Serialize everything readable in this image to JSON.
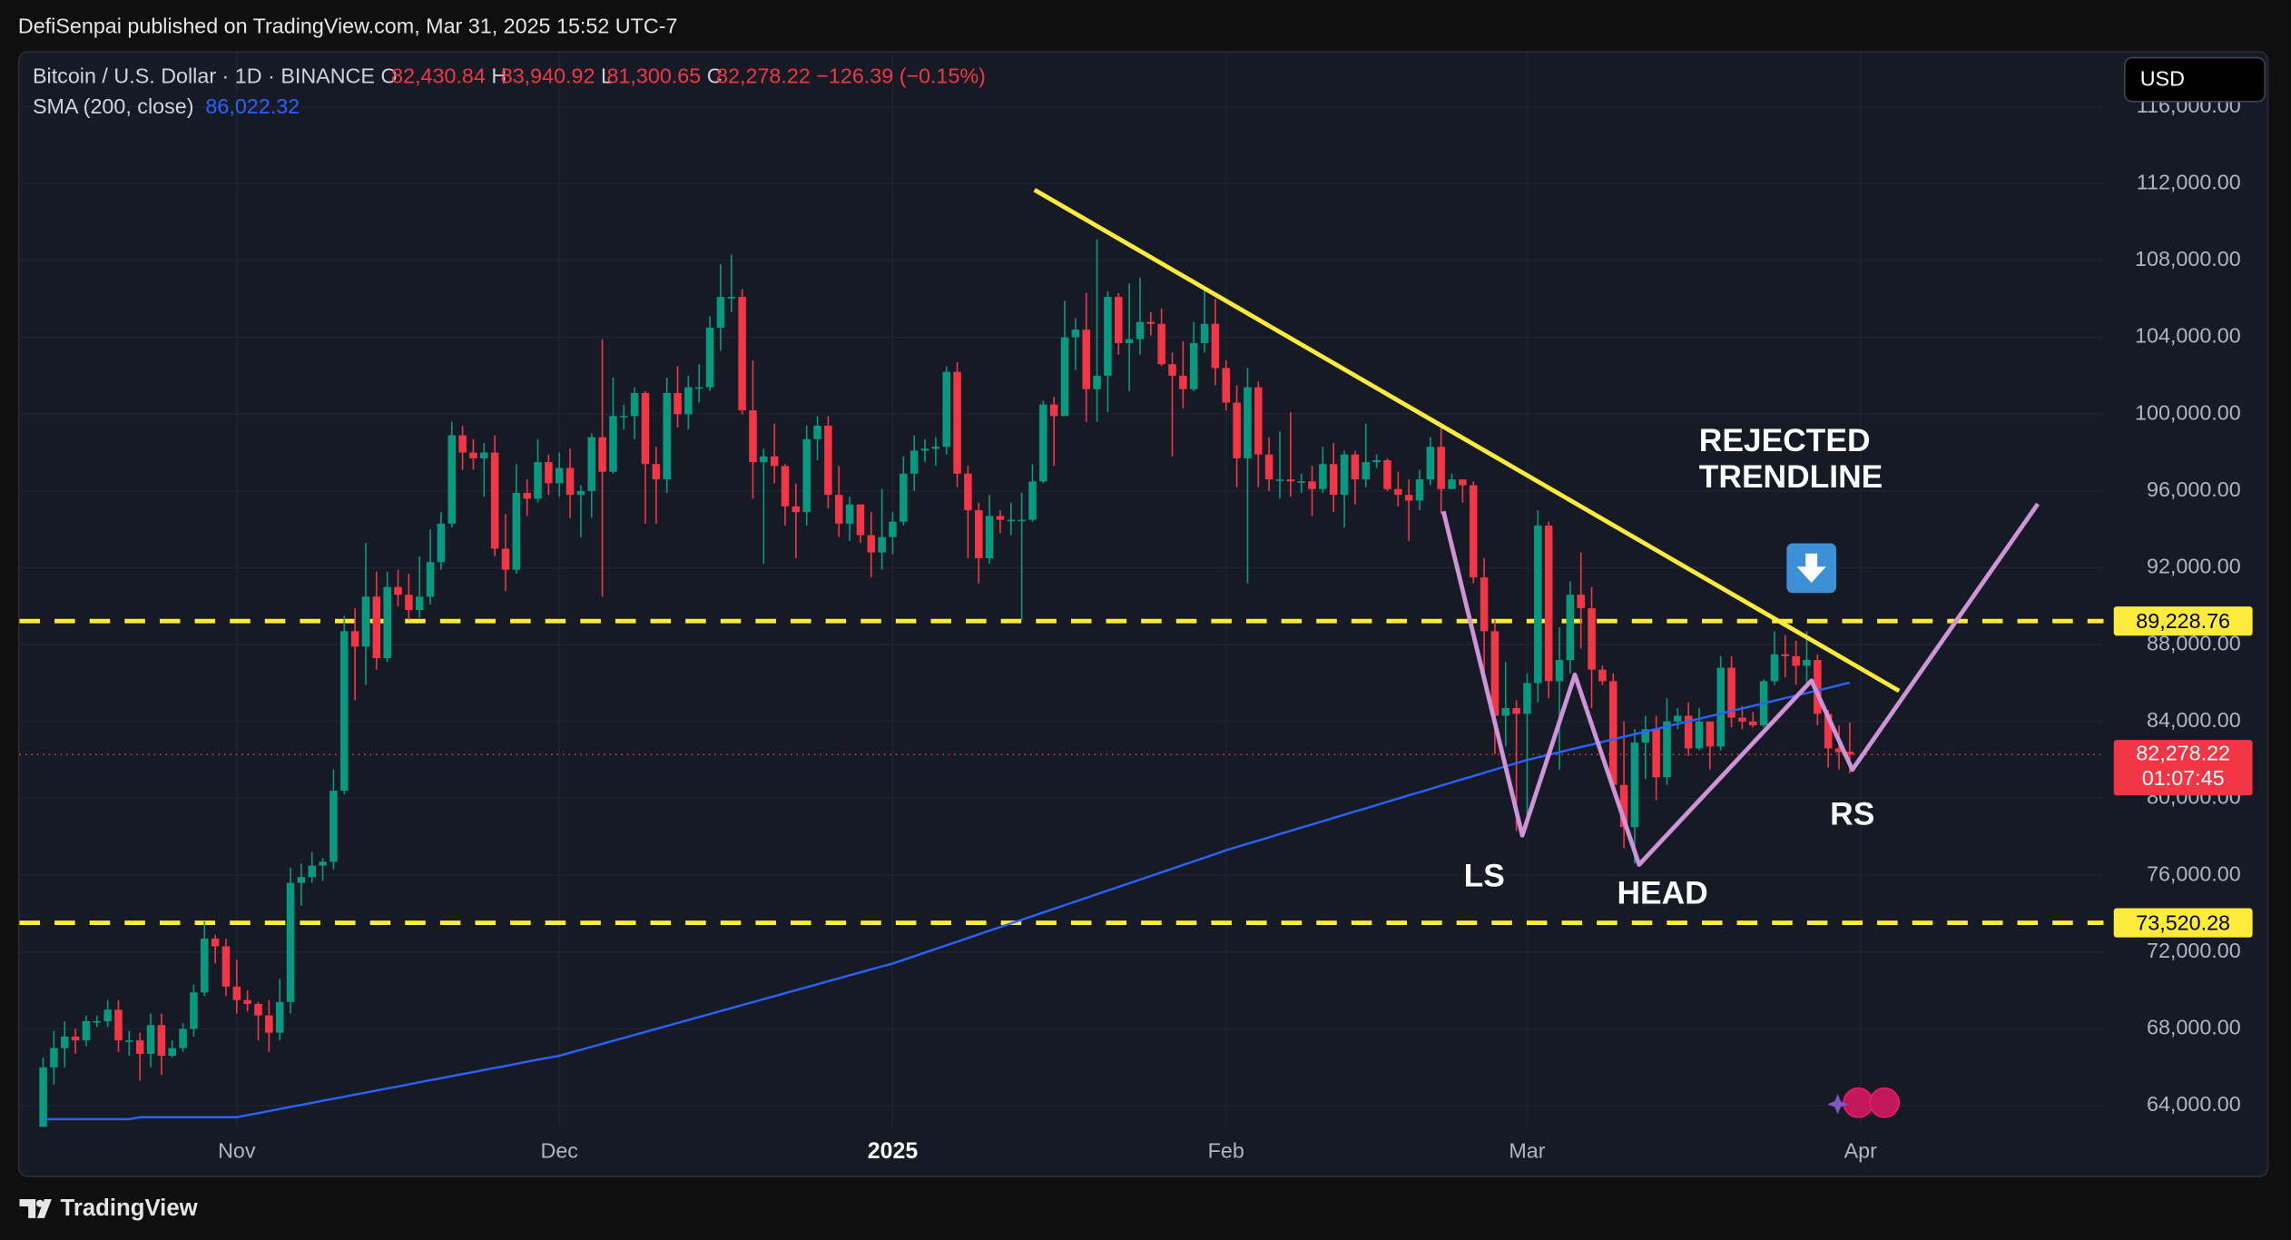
{
  "header": {
    "publisher": "DefiSenpai published on TradingView.com, Mar 31, 2025 15:52 UTC-7"
  },
  "footer": {
    "brand": "TradingView"
  },
  "currency": "USD",
  "chart_data": {
    "type": "candlestick",
    "symbol": "Bitcoin / U.S. Dollar · 1D · BINANCE",
    "legend": {
      "o_label": "O",
      "o": "82,430.84",
      "h_label": "H",
      "h": "83,940.92",
      "l_label": "L",
      "l": "81,300.65",
      "c_label": "C",
      "c": "82,278.22",
      "change": "−126.39 (−0.15%)"
    },
    "up_color": "#089981",
    "down_color": "#f23645",
    "open": [
      62900,
      66000,
      67000,
      67600,
      67400,
      68400,
      68400,
      69000,
      67400,
      67400,
      66700,
      68200,
      66600,
      67000,
      68000,
      69900,
      72700,
      72300,
      70200,
      69500,
      69300,
      68700,
      67800,
      69400,
      75600,
      75900,
      76500,
      76700,
      80400,
      88700,
      87900,
      90500,
      87300,
      91000,
      90600,
      89800,
      90500,
      92300,
      94300,
      98900,
      98000,
      97700,
      98000,
      93000,
      91900,
      95900,
      95600,
      97500,
      96400,
      97200,
      95800,
      96000,
      98800,
      97000,
      99900,
      99900,
      101100,
      97400,
      96600,
      101100,
      100000,
      101400,
      101400,
      104500,
      106100,
      106100,
      100200,
      97500,
      97800,
      97300,
      95200,
      94900,
      98700,
      99400,
      95800,
      94300,
      95300,
      93700,
      92800,
      93600,
      94400,
      96900,
      98100,
      98200,
      98300,
      102200,
      96900,
      95000,
      92500,
      94700,
      94500,
      94500,
      94500,
      96500,
      100500,
      99900,
      104000,
      104400,
      101300,
      102000,
      106100,
      103700,
      103900,
      104800,
      104700,
      102600,
      102000,
      101300,
      103700,
      104700,
      102400,
      100600,
      97700,
      101400,
      97900,
      96600,
      96600,
      96500,
      96500,
      96100,
      97400,
      95800,
      97900,
      96600,
      97500,
      97600,
      96100,
      95800,
      95500,
      96600,
      98300,
      96100,
      96600,
      96300,
      91500,
      88700,
      84300,
      84700,
      84400,
      86000,
      94200,
      86100,
      87200,
      90600,
      89900,
      86700,
      86100,
      80700,
      78500,
      82900,
      83600,
      81100,
      84000,
      84300,
      82600,
      84000,
      82700,
      86800,
      84200,
      84000,
      83800,
      86100,
      87500,
      87400,
      86900,
      87200,
      84400,
      82600,
      82430.84
    ],
    "high": [
      66500,
      67900,
      68400,
      68000,
      68700,
      68700,
      69500,
      69500,
      67900,
      67800,
      68800,
      68800,
      67400,
      68300,
      70300,
      73600,
      72900,
      72700,
      71600,
      70000,
      69400,
      69500,
      70600,
      76400,
      76600,
      77200,
      76900,
      81500,
      89500,
      89900,
      93300,
      91800,
      91800,
      91900,
      91700,
      92600,
      94000,
      94900,
      99600,
      99400,
      98700,
      98500,
      98900,
      94800,
      97400,
      96600,
      98700,
      97900,
      98000,
      98200,
      96300,
      99000,
      103900,
      101900,
      100500,
      101400,
      101200,
      98300,
      101900,
      102500,
      102000,
      102600,
      105100,
      107800,
      108300,
      106500,
      102800,
      98200,
      99500,
      97400,
      96400,
      99400,
      99900,
      99900,
      97300,
      95700,
      95300,
      94900,
      96100,
      94900,
      97800,
      98900,
      98700,
      98800,
      102500,
      102700,
      97300,
      95400,
      95800,
      95000,
      95400,
      95900,
      97400,
      100700,
      100900,
      105900,
      105000,
      106300,
      109100,
      106400,
      106300,
      106800,
      107100,
      105300,
      105500,
      103200,
      103800,
      104800,
      106500,
      106000,
      102800,
      101500,
      102400,
      101700,
      98800,
      99100,
      100100,
      96900,
      97300,
      98300,
      98500,
      98100,
      98100,
      99500,
      97900,
      97700,
      97000,
      96600,
      97100,
      98800,
      99500,
      96900,
      96500,
      96500,
      92500,
      89300,
      87100,
      85100,
      86500,
      95000,
      94400,
      88900,
      91300,
      92800,
      91000,
      86900,
      86500,
      84000,
      83600,
      84300,
      84300,
      85200,
      84700,
      85000,
      84700,
      84000,
      87400,
      87400,
      84800,
      84500,
      86200,
      88700,
      88500,
      88200,
      88700,
      87500,
      84600,
      83800,
      83940.92
    ],
    "low": [
      62900,
      65100,
      66000,
      66700,
      67100,
      68100,
      68100,
      66800,
      66600,
      65300,
      66000,
      65600,
      66500,
      66800,
      67600,
      69700,
      71400,
      69700,
      68800,
      68900,
      67400,
      66800,
      67400,
      68800,
      74400,
      75600,
      75700,
      76300,
      80200,
      85100,
      85900,
      86700,
      87100,
      90000,
      89300,
      89400,
      90100,
      91900,
      94100,
      97100,
      97100,
      95700,
      92600,
      90800,
      91700,
      94700,
      95400,
      95800,
      95700,
      94600,
      93600,
      94600,
      90500,
      96900,
      99200,
      98700,
      94300,
      94300,
      95900,
      99300,
      99200,
      100600,
      101200,
      103300,
      105300,
      100000,
      95600,
      92200,
      96400,
      94200,
      92500,
      94200,
      97600,
      95100,
      93600,
      93400,
      93300,
      91500,
      91900,
      92700,
      94200,
      96000,
      97500,
      97300,
      97900,
      96200,
      92500,
      91200,
      92200,
      93800,
      93700,
      89300,
      94400,
      96400,
      97300,
      99900,
      102300,
      99600,
      99600,
      100100,
      103100,
      101200,
      103100,
      104100,
      102500,
      97800,
      100300,
      101200,
      103200,
      101500,
      100200,
      96200,
      91200,
      96200,
      96000,
      95600,
      95700,
      95900,
      94700,
      95900,
      94900,
      94100,
      95300,
      96200,
      97200,
      96000,
      95200,
      93400,
      95000,
      96300,
      94800,
      96100,
      95400,
      91200,
      86100,
      82300,
      82700,
      78300,
      78500,
      85000,
      85200,
      81500,
      86500,
      87800,
      84700,
      85900,
      80300,
      77400,
      76600,
      81000,
      79900,
      80700,
      83600,
      82200,
      82500,
      81500,
      82500,
      83700,
      83600,
      83700,
      83700,
      85900,
      86300,
      85900,
      85900,
      83800,
      81600,
      81500,
      81300.65
    ],
    "close": [
      66000,
      67000,
      67600,
      67400,
      68400,
      68400,
      69000,
      67400,
      67400,
      66700,
      68200,
      66600,
      67000,
      68000,
      69900,
      72700,
      72300,
      70200,
      69500,
      69300,
      68700,
      67800,
      69400,
      75600,
      75900,
      76500,
      76700,
      80400,
      88700,
      87900,
      90500,
      87300,
      91000,
      90600,
      89800,
      90500,
      92300,
      94300,
      98900,
      98000,
      97700,
      98000,
      93000,
      91900,
      95900,
      95600,
      97500,
      96400,
      97200,
      95800,
      96000,
      98800,
      97000,
      99900,
      99900,
      101100,
      97400,
      96600,
      101100,
      100000,
      101400,
      101400,
      104500,
      106100,
      106100,
      100200,
      97500,
      97800,
      97300,
      95200,
      94900,
      98700,
      99400,
      95800,
      94300,
      95300,
      93700,
      92800,
      93600,
      94400,
      96900,
      98100,
      98200,
      98300,
      102200,
      96900,
      95000,
      92500,
      94700,
      94500,
      94500,
      94500,
      96500,
      100500,
      99900,
      104000,
      104400,
      101300,
      102000,
      106100,
      103700,
      103900,
      104800,
      104700,
      102600,
      102000,
      101300,
      103700,
      104700,
      102400,
      100600,
      97700,
      101400,
      97900,
      96600,
      96600,
      96500,
      96500,
      96100,
      97400,
      95800,
      97900,
      96600,
      97500,
      97600,
      96100,
      95800,
      95500,
      96600,
      98300,
      96100,
      96600,
      96300,
      91500,
      88700,
      84300,
      84700,
      84400,
      86000,
      94200,
      86100,
      87200,
      90600,
      89900,
      86700,
      86100,
      80700,
      78500,
      82900,
      83600,
      81100,
      84000,
      84300,
      82600,
      84000,
      82700,
      86800,
      84200,
      84000,
      83800,
      86100,
      87500,
      87400,
      86900,
      87200,
      84400,
      82600,
      82400,
      82278.22
    ],
    "series": [
      {
        "name": "SMA (200, close)",
        "value_label": "86,022.32",
        "color": "#2962ff",
        "values": [
          63300,
          63300,
          63300,
          63300,
          63300,
          63300,
          63300,
          63300,
          63300,
          63400,
          63400,
          63400,
          63400,
          63400,
          63400,
          63400,
          63400,
          63400,
          63400,
          63510,
          63610,
          63720,
          63830,
          63940,
          64040,
          64150,
          64260,
          64360,
          64470,
          64580,
          64680,
          64790,
          64900,
          65000,
          65110,
          65220,
          65330,
          65430,
          65540,
          65650,
          65750,
          65860,
          65970,
          66070,
          66180,
          66290,
          66400,
          66500,
          66600,
          66760,
          66910,
          67070,
          67220,
          67380,
          67530,
          67690,
          67840,
          68000,
          68150,
          68310,
          68460,
          68620,
          68770,
          68930,
          69080,
          69240,
          69390,
          69550,
          69700,
          69860,
          70010,
          70170,
          70320,
          70480,
          70630,
          70790,
          70940,
          71100,
          71250,
          71400,
          71590,
          71780,
          71970,
          72160,
          72350,
          72540,
          72730,
          72920,
          73110,
          73300,
          73490,
          73680,
          73870,
          74060,
          74250,
          74440,
          74630,
          74820,
          75010,
          75200,
          75390,
          75580,
          75770,
          75960,
          76150,
          76340,
          76530,
          76720,
          76910,
          77100,
          77300,
          77470,
          77640,
          77800,
          77970,
          78140,
          78310,
          78480,
          78640,
          78810,
          78980,
          79150,
          79320,
          79480,
          79650,
          79820,
          79990,
          80160,
          80320,
          80490,
          80660,
          80830,
          81000,
          81160,
          81330,
          81500,
          81670,
          81830,
          82000,
          82130,
          82270,
          82400,
          82540,
          82670,
          82800,
          82940,
          83070,
          83210,
          83340,
          83470,
          83610,
          83740,
          83880,
          84010,
          84140,
          84280,
          84410,
          84550,
          84680,
          84810,
          84950,
          85080,
          85220,
          85350,
          85480,
          85620,
          85750,
          85890,
          86022.32
        ]
      }
    ],
    "xlim": [
      -2.2,
      191.6
    ],
    "xticks": [
      {
        "value": 18,
        "label": "Nov"
      },
      {
        "value": 48,
        "label": "Dec"
      },
      {
        "value": 79,
        "label": "2025"
      },
      {
        "value": 110,
        "label": "Feb"
      },
      {
        "value": 138,
        "label": "Mar"
      },
      {
        "value": 169,
        "label": "Apr"
      }
    ],
    "ylim": [
      60355,
      118821
    ],
    "yticks": [
      {
        "value": 64000,
        "label": "64,000.00"
      },
      {
        "value": 68000,
        "label": "68,000.00"
      },
      {
        "value": 72000,
        "label": "72,000.00"
      },
      {
        "value": 76000,
        "label": "76,000.00"
      },
      {
        "value": 80000,
        "label": "80,000.00"
      },
      {
        "value": 84000,
        "label": "84,000.00"
      },
      {
        "value": 88000,
        "label": "88,000.00"
      },
      {
        "value": 92000,
        "label": "92,000.00"
      },
      {
        "value": 96000,
        "label": "96,000.00"
      },
      {
        "value": 100000,
        "label": "100,000.00"
      },
      {
        "value": 104000,
        "label": "104,000.00"
      },
      {
        "value": 108000,
        "label": "108,000.00"
      },
      {
        "value": 112000,
        "label": "112,000.00"
      },
      {
        "value": 116000,
        "label": "116,000.00"
      }
    ],
    "grid": true,
    "hlines": [
      {
        "value": 89228.76,
        "label": "89,228.76",
        "color": "#ffeb3b"
      },
      {
        "value": 73520.28,
        "label": "73,520.28",
        "color": "#ffeb3b"
      }
    ],
    "last_price": {
      "value": 82278.22,
      "label": "82,278.22",
      "countdown": "01:07:45",
      "color": "#f23645"
    },
    "annotations": [
      "REJECTED",
      "TRENDLINE",
      "LS",
      "HEAD",
      "RS"
    ]
  }
}
